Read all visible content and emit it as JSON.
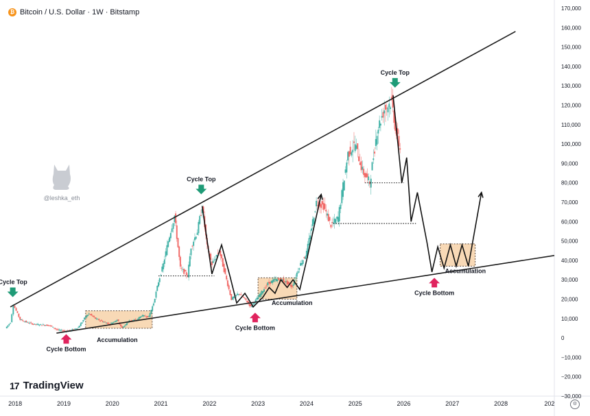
{
  "header": {
    "title": "Bitcoin / U.S. Dollar · 1W · Bitstamp"
  },
  "brand": {
    "logo": "17",
    "name": "TradingView"
  },
  "watermark": {
    "handle": "@leshka_eth"
  },
  "colors": {
    "up": "#26a69a",
    "down": "#ef5350",
    "accumulation_fill": "#f8d9b6",
    "arrow_top": "#1f9b77",
    "arrow_bottom": "#e0245e"
  },
  "icons": [
    "bitcoin-icon",
    "cat-icon",
    "tradingview-logo-icon",
    "settings-icon",
    "arrow-down-icon",
    "arrow-up-icon"
  ],
  "chart_data": {
    "type": "line",
    "title": "Bitcoin / U.S. Dollar · 1W · Bitstamp",
    "xlabel": "",
    "ylabel": "",
    "ylim": [
      -30000,
      170000
    ],
    "xlim": [
      2017.8,
      2029.1
    ],
    "grid": false,
    "x_tick_labels": [
      "2018",
      "2019",
      "2020",
      "2021",
      "2022",
      "2023",
      "2024",
      "2025",
      "2026",
      "2027",
      "2028",
      "202"
    ],
    "y_tick_labels": [
      "170,000",
      "160,000",
      "150,000",
      "140,000",
      "130,000",
      "120,000",
      "110,000",
      "100,000",
      "90,000",
      "80,000",
      "70,000",
      "60,000",
      "50,000",
      "40,000",
      "30,000",
      "20,000",
      "10,000",
      "0",
      "−10,000",
      "−20,000",
      "−30,000"
    ],
    "series": [
      {
        "values": [
          [
            2017.8,
            5000
          ],
          [
            2017.9,
            8000
          ],
          [
            2017.96,
            17000
          ],
          [
            2018.02,
            14000
          ],
          [
            2018.1,
            9500
          ],
          [
            2018.25,
            8000
          ],
          [
            2018.4,
            7000
          ],
          [
            2018.55,
            6800
          ],
          [
            2018.7,
            6500
          ],
          [
            2018.88,
            4000
          ],
          [
            2019.0,
            3700
          ],
          [
            2019.15,
            3900
          ],
          [
            2019.3,
            5500
          ],
          [
            2019.45,
            11000
          ],
          [
            2019.52,
            12500
          ],
          [
            2019.65,
            10000
          ],
          [
            2019.8,
            8500
          ],
          [
            2019.95,
            7200
          ],
          [
            2020.1,
            9500
          ],
          [
            2020.2,
            5000
          ],
          [
            2020.35,
            9000
          ],
          [
            2020.5,
            9300
          ],
          [
            2020.6,
            11500
          ],
          [
            2020.75,
            11000
          ],
          [
            2020.85,
            18000
          ],
          [
            2020.95,
            29000
          ],
          [
            2021.05,
            38000
          ],
          [
            2021.15,
            50000
          ],
          [
            2021.28,
            63000
          ],
          [
            2021.4,
            36000
          ],
          [
            2021.55,
            32000
          ],
          [
            2021.62,
            47000
          ],
          [
            2021.75,
            55000
          ],
          [
            2021.85,
            68000
          ],
          [
            2021.95,
            47000
          ],
          [
            2022.05,
            38000
          ],
          [
            2022.2,
            45000
          ],
          [
            2022.35,
            30000
          ],
          [
            2022.45,
            20000
          ],
          [
            2022.6,
            23000
          ],
          [
            2022.75,
            19500
          ],
          [
            2022.85,
            16000
          ],
          [
            2023.0,
            21000
          ],
          [
            2023.2,
            28000
          ],
          [
            2023.35,
            30000
          ],
          [
            2023.5,
            30000
          ],
          [
            2023.7,
            26500
          ],
          [
            2023.85,
            37000
          ],
          [
            2024.0,
            44000
          ],
          [
            2024.2,
            70000
          ],
          [
            2024.35,
            68000
          ],
          [
            2024.5,
            58000
          ],
          [
            2024.65,
            62000
          ],
          [
            2024.85,
            95000
          ],
          [
            2025.0,
            100000
          ],
          [
            2025.15,
            86000
          ],
          [
            2025.3,
            80000
          ],
          [
            2025.45,
            107000
          ],
          [
            2025.6,
            118000
          ],
          [
            2025.75,
            122000
          ],
          [
            2025.85,
            105000
          ],
          [
            2025.95,
            95000
          ]
        ]
      }
    ],
    "trendlines": [
      {
        "name": "upper",
        "from": [
          2017.9,
          16000
        ],
        "to": [
          2028.3,
          158000
        ]
      },
      {
        "name": "lower",
        "from": [
          2018.85,
          2500
        ],
        "to": [
          2029.1,
          42500
        ]
      }
    ],
    "projection": [
      [
        2025.78,
        125000
      ],
      [
        2025.96,
        80000
      ],
      [
        2026.06,
        93000
      ],
      [
        2026.15,
        60000
      ],
      [
        2026.28,
        75000
      ],
      [
        2026.48,
        49000
      ],
      [
        2026.58,
        34000
      ],
      [
        2026.7,
        47000
      ],
      [
        2026.83,
        36000
      ],
      [
        2026.96,
        48000
      ],
      [
        2027.08,
        37000
      ],
      [
        2027.2,
        48000
      ],
      [
        2027.33,
        37000
      ],
      [
        2027.6,
        75000
      ]
    ],
    "past_paths": [
      [
        [
          2021.85,
          68000
        ],
        [
          2022.05,
          33000
        ],
        [
          2022.25,
          48000
        ],
        [
          2022.42,
          32000
        ],
        [
          2022.56,
          18000
        ],
        [
          2022.73,
          23000
        ],
        [
          2022.9,
          16000
        ],
        [
          2023.1,
          21000
        ],
        [
          2023.23,
          26000
        ],
        [
          2023.35,
          23000
        ],
        [
          2023.47,
          30000
        ],
        [
          2023.6,
          26000
        ],
        [
          2023.72,
          30000
        ],
        [
          2023.86,
          25000
        ],
        [
          2024.0,
          40000
        ],
        [
          2024.3,
          74000
        ]
      ]
    ],
    "dotted_levels": [
      {
        "y": 32000,
        "x": [
          2020.95,
          2022.1
        ]
      },
      {
        "y": 80000,
        "x": [
          2025.2,
          2026.0
        ]
      },
      {
        "y": 59000,
        "x": [
          2024.55,
          2026.25
        ]
      }
    ],
    "accumulation_zones": [
      {
        "x": [
          2019.45,
          2020.82
        ],
        "y": [
          5000,
          14000
        ]
      },
      {
        "x": [
          2023.0,
          2023.8
        ],
        "y": [
          20000,
          31000
        ]
      },
      {
        "x": [
          2026.75,
          2027.47
        ],
        "y": [
          37000,
          48500
        ]
      }
    ],
    "annotations": [
      {
        "text": "Cycle Top",
        "x": 2017.95,
        "y": 20000,
        "kind": "top"
      },
      {
        "text": "Cycle Top",
        "x": 2021.83,
        "y": 73000,
        "kind": "top"
      },
      {
        "text": "Cycle Top",
        "x": 2025.82,
        "y": 128000,
        "kind": "top"
      },
      {
        "text": "Cycle Bottom",
        "x": 2019.05,
        "y": 2000,
        "kind": "bottom"
      },
      {
        "text": "Cycle Bottom",
        "x": 2022.94,
        "y": 13000,
        "kind": "bottom"
      },
      {
        "text": "Cycle Bottom",
        "x": 2026.63,
        "y": 31000,
        "kind": "bottom"
      },
      {
        "text": "Accumulation",
        "x": 2020.1,
        "y": -2000,
        "kind": "label"
      },
      {
        "text": "Accumulation",
        "x": 2023.7,
        "y": 17000,
        "kind": "label"
      },
      {
        "text": "Accumulation",
        "x": 2027.27,
        "y": 33500,
        "kind": "label"
      }
    ]
  }
}
